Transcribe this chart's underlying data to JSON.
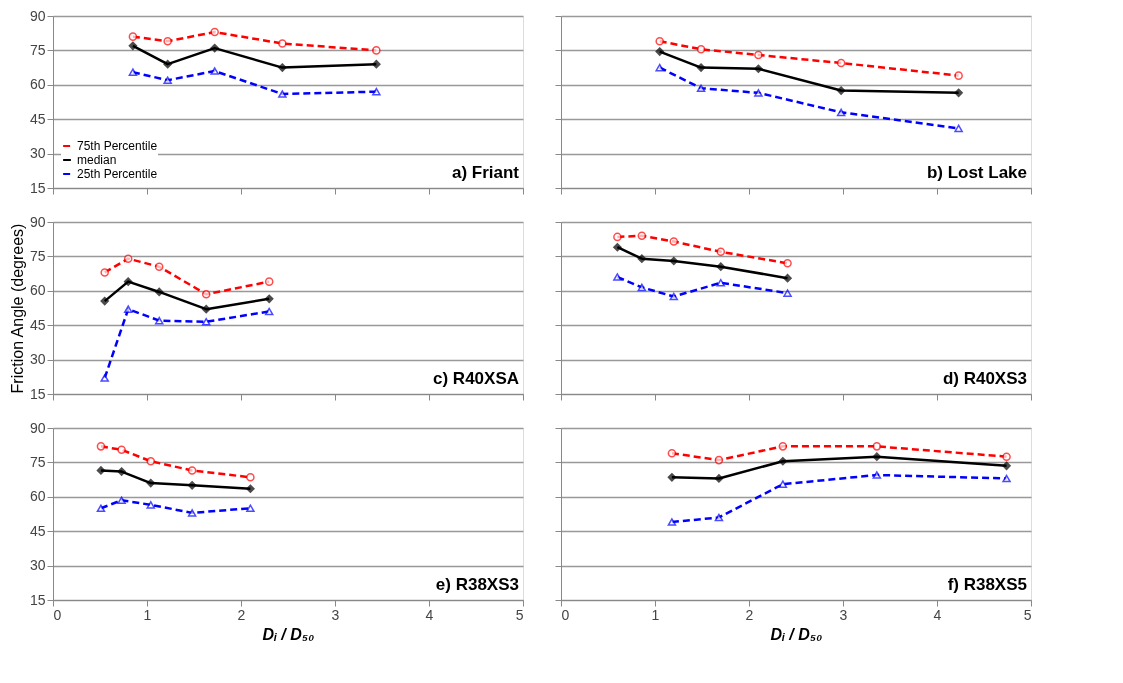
{
  "chart_data": [
    {
      "type": "line",
      "x": [
        0.85,
        1.22,
        1.72,
        2.44,
        3.44
      ],
      "xlim": [
        0,
        5
      ],
      "xticks": [
        0,
        1,
        2,
        3,
        4,
        5
      ],
      "ylim": [
        15,
        90
      ],
      "yticks": [
        15,
        30,
        45,
        60,
        75,
        90
      ],
      "grid": "y",
      "tick_labels": "y",
      "legend": "bottom left",
      "annotations": [
        "a) Friant"
      ],
      "series": [
        {
          "name": "75th Percentile",
          "color": "#ff0000",
          "marker": "circle",
          "line_style": "dashed",
          "values": [
            81,
            79,
            83,
            78,
            75
          ]
        },
        {
          "name": "median",
          "color": "#000000",
          "marker": "diamond",
          "line_style": "solid",
          "values": [
            77,
            69,
            76,
            67.5,
            69
          ]
        },
        {
          "name": "25th Percentile",
          "color": "#0000ff",
          "marker": "triangle",
          "line_style": "dashed",
          "values": [
            65.5,
            62,
            66,
            56,
            57
          ]
        }
      ]
    },
    {
      "type": "line",
      "x": [
        1.05,
        1.49,
        2.1,
        2.98,
        4.23
      ],
      "xlim": [
        0,
        5
      ],
      "xticks": [
        0,
        1,
        2,
        3,
        4,
        5
      ],
      "ylim": [
        15,
        90
      ],
      "yticks": [
        15,
        30,
        45,
        60,
        75,
        90
      ],
      "grid": "y",
      "tick_labels": false,
      "annotations": [
        "b) Lost Lake"
      ],
      "series": [
        {
          "color": "#ff0000",
          "marker": "circle",
          "line_style": "dashed",
          "values": [
            79,
            75.5,
            73,
            69.5,
            64
          ]
        },
        {
          "color": "#000000",
          "marker": "diamond",
          "line_style": "solid",
          "values": [
            74.5,
            67.5,
            67,
            57.5,
            56.5
          ]
        },
        {
          "color": "#0000ff",
          "marker": "triangle",
          "line_style": "dashed",
          "values": [
            67.5,
            58.5,
            56.5,
            48,
            41
          ]
        }
      ]
    },
    {
      "type": "line",
      "x": [
        0.55,
        0.8,
        1.13,
        1.63,
        2.3
      ],
      "xlim": [
        0,
        5
      ],
      "xticks": [
        0,
        1,
        2,
        3,
        4,
        5
      ],
      "ylim": [
        15,
        90
      ],
      "yticks": [
        15,
        30,
        45,
        60,
        75,
        90
      ],
      "grid": "y",
      "tick_labels": "y",
      "ylabel": "Friction Angle (degrees)",
      "annotations": [
        "c) R40XSA"
      ],
      "series": [
        {
          "color": "#ff0000",
          "marker": "circle",
          "line_style": "dashed",
          "values": [
            68,
            74,
            70.5,
            58.5,
            64
          ]
        },
        {
          "color": "#000000",
          "marker": "diamond",
          "line_style": "solid",
          "values": [
            55.5,
            64,
            59.5,
            52,
            56.5
          ]
        },
        {
          "color": "#0000ff",
          "marker": "triangle",
          "line_style": "dashed",
          "values": [
            22,
            52,
            47,
            46.5,
            51
          ]
        }
      ]
    },
    {
      "type": "line",
      "x": [
        0.6,
        0.86,
        1.2,
        1.7,
        2.41
      ],
      "xlim": [
        0,
        5
      ],
      "xticks": [
        0,
        1,
        2,
        3,
        4,
        5
      ],
      "ylim": [
        15,
        90
      ],
      "yticks": [
        15,
        30,
        45,
        60,
        75,
        90
      ],
      "grid": "y",
      "tick_labels": false,
      "annotations": [
        "d) R40XS3"
      ],
      "series": [
        {
          "color": "#ff0000",
          "marker": "circle",
          "line_style": "dashed",
          "values": [
            83.5,
            84,
            81.5,
            77,
            72
          ]
        },
        {
          "color": "#000000",
          "marker": "diamond",
          "line_style": "solid",
          "values": [
            79,
            74,
            73,
            70.5,
            65.5
          ]
        },
        {
          "color": "#0000ff",
          "marker": "triangle",
          "line_style": "dashed",
          "values": [
            66,
            61.5,
            57.5,
            63.5,
            59
          ]
        }
      ]
    },
    {
      "type": "line",
      "x": [
        0.51,
        0.73,
        1.04,
        1.48,
        2.1
      ],
      "xlim": [
        0,
        5
      ],
      "xticks": [
        0,
        1,
        2,
        3,
        4,
        5
      ],
      "ylim": [
        15,
        90
      ],
      "yticks": [
        15,
        30,
        45,
        60,
        75,
        90
      ],
      "grid": "y",
      "xlabel": "Dᵢ / D₅₀",
      "annotations": [
        "e) R38XS3"
      ],
      "series": [
        {
          "color": "#ff0000",
          "marker": "circle",
          "line_style": "dashed",
          "values": [
            82,
            80.5,
            75.5,
            71.5,
            68.5
          ]
        },
        {
          "color": "#000000",
          "marker": "diamond",
          "line_style": "solid",
          "values": [
            71.5,
            71,
            66,
            65,
            63.5
          ]
        },
        {
          "color": "#0000ff",
          "marker": "triangle",
          "line_style": "dashed",
          "values": [
            55,
            58.5,
            56.5,
            53,
            55
          ]
        }
      ]
    },
    {
      "type": "line",
      "x": [
        1.18,
        1.68,
        2.36,
        3.36,
        4.74
      ],
      "xlim": [
        0,
        5
      ],
      "xticks": [
        0,
        1,
        2,
        3,
        4,
        5
      ],
      "ylim": [
        15,
        90
      ],
      "yticks": [
        15,
        30,
        45,
        60,
        75,
        90
      ],
      "grid": "y",
      "tick_labels": "x",
      "xlabel": "Dᵢ / D₅₀",
      "annotations": [
        "f) R38XS5"
      ],
      "series": [
        {
          "color": "#ff0000",
          "marker": "circle",
          "line_style": "dashed",
          "values": [
            79,
            76,
            82,
            82,
            77.5
          ]
        },
        {
          "color": "#000000",
          "marker": "diamond",
          "line_style": "solid",
          "values": [
            68.5,
            68,
            75.5,
            77.5,
            73.5
          ]
        },
        {
          "color": "#0000ff",
          "marker": "triangle",
          "line_style": "dashed",
          "values": [
            49,
            51,
            65.5,
            69.5,
            68
          ]
        }
      ]
    }
  ]
}
